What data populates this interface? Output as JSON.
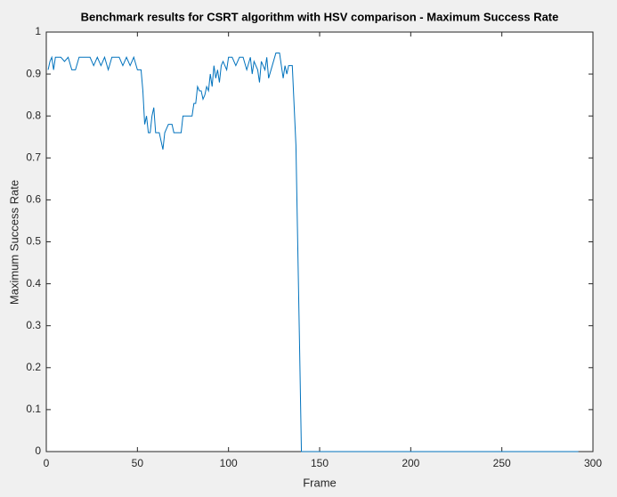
{
  "chart_data": {
    "type": "line",
    "title": "Benchmark results for CSRT algorithm with HSV comparison - Maximum Success Rate",
    "x_label": "Frame",
    "y_label": "Maximum Success Rate",
    "series": [
      {
        "name": "Maximum Success Rate",
        "color": "#0072bd",
        "x": [
          1,
          2,
          3,
          4,
          5,
          6,
          8,
          10,
          12,
          14,
          16,
          18,
          20,
          24,
          26,
          28,
          30,
          32,
          34,
          36,
          40,
          42,
          44,
          46,
          48,
          50,
          52,
          53,
          54,
          55,
          56,
          57,
          58,
          59,
          60,
          62,
          63,
          64,
          65,
          66,
          67,
          69,
          70,
          72,
          74,
          75,
          78,
          80,
          81,
          82,
          83,
          84,
          85,
          86,
          87,
          88,
          89,
          90,
          91,
          92,
          93,
          94,
          95,
          96,
          97,
          99,
          100,
          102,
          104,
          106,
          108,
          110,
          112,
          113,
          114,
          116,
          117,
          118,
          120,
          121,
          122,
          124,
          126,
          128,
          129,
          130,
          131,
          132,
          133,
          135,
          137,
          139,
          140,
          292
        ],
        "values": [
          0.91,
          0.93,
          0.94,
          0.91,
          0.94,
          0.94,
          0.94,
          0.93,
          0.94,
          0.91,
          0.91,
          0.94,
          0.94,
          0.94,
          0.92,
          0.94,
          0.92,
          0.94,
          0.91,
          0.94,
          0.94,
          0.92,
          0.94,
          0.92,
          0.94,
          0.91,
          0.91,
          0.86,
          0.78,
          0.8,
          0.76,
          0.76,
          0.8,
          0.82,
          0.76,
          0.76,
          0.74,
          0.72,
          0.76,
          0.77,
          0.78,
          0.78,
          0.76,
          0.76,
          0.76,
          0.8,
          0.8,
          0.8,
          0.83,
          0.83,
          0.87,
          0.86,
          0.86,
          0.84,
          0.85,
          0.87,
          0.86,
          0.9,
          0.87,
          0.92,
          0.89,
          0.91,
          0.88,
          0.92,
          0.93,
          0.91,
          0.94,
          0.94,
          0.92,
          0.94,
          0.94,
          0.91,
          0.94,
          0.9,
          0.93,
          0.91,
          0.88,
          0.93,
          0.91,
          0.94,
          0.89,
          0.92,
          0.95,
          0.95,
          0.92,
          0.89,
          0.92,
          0.9,
          0.92,
          0.92,
          0.73,
          0.25,
          0,
          0
        ]
      }
    ],
    "xlim": [
      0,
      300
    ],
    "xticks": [
      0,
      50,
      100,
      150,
      200,
      250,
      300
    ],
    "ylim": [
      0,
      1
    ],
    "yticks": [
      0,
      0.1,
      0.2,
      0.3,
      0.4,
      0.5,
      0.6,
      0.7,
      0.8,
      0.9,
      1
    ]
  }
}
